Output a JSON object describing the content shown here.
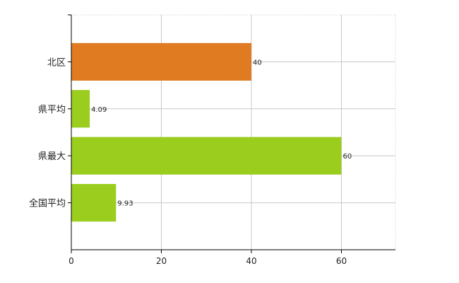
{
  "chart_data": {
    "type": "bar",
    "orientation": "horizontal",
    "categories": [
      "北区",
      "県平均",
      "県最大",
      "全国平均"
    ],
    "values": [
      40,
      4.09,
      60,
      9.93
    ],
    "value_labels": [
      "40",
      "4.09",
      "60",
      "9.93"
    ],
    "bar_colors": [
      "#e07b22",
      "#9acd1e",
      "#9acd1e",
      "#9acd1e"
    ],
    "xlim": [
      0,
      72
    ],
    "x_ticks": [
      0,
      20,
      40,
      60
    ],
    "x_tick_labels": [
      "0",
      "20",
      "40",
      "60"
    ],
    "grid": true,
    "title": "",
    "xlabel": "",
    "ylabel": ""
  }
}
